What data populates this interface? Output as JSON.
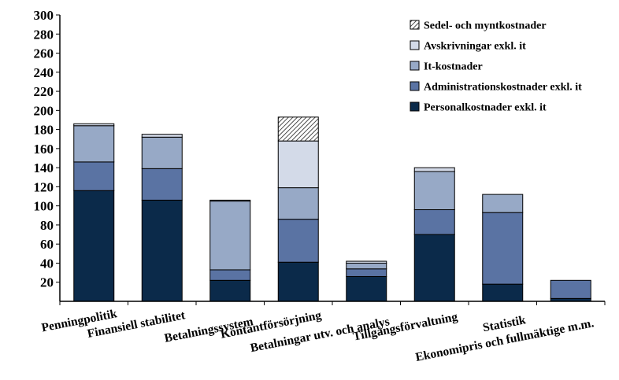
{
  "chart_data": {
    "type": "bar",
    "stacked": true,
    "title": "",
    "xlabel": "",
    "ylabel": "",
    "ylim": [
      0,
      300
    ],
    "yticks": [
      20,
      40,
      60,
      80,
      100,
      120,
      140,
      160,
      180,
      200,
      220,
      240,
      260,
      280,
      300
    ],
    "grid": false,
    "legend_position": "top-right",
    "categories": [
      "Penningpolitik",
      "Finansiell stabilitet",
      "Betalningssystem",
      "Kontantförsörjning",
      "Betalningar utv. och analys",
      "Tillgångsförvaltning",
      "Statistik",
      "Ekonomipris och fullmäktige m.m."
    ],
    "series": [
      {
        "name": "Personalkostnader exkl. it",
        "color": "#0b2a4a",
        "pattern": "solid",
        "values": [
          116,
          106,
          22,
          41,
          26,
          70,
          18,
          3
        ]
      },
      {
        "name": "Administrationskostnader exkl. it",
        "color": "#5a73a3",
        "pattern": "solid",
        "values": [
          30,
          33,
          11,
          45,
          8,
          26,
          75,
          19
        ]
      },
      {
        "name": "It-kostnader",
        "color": "#97a9c6",
        "pattern": "solid",
        "values": [
          38,
          33,
          72,
          33,
          6,
          40,
          19,
          0
        ]
      },
      {
        "name": "Avskrivningar exkl. it",
        "color": "#d3dae8",
        "pattern": "solid",
        "values": [
          2,
          3,
          1,
          49,
          2,
          4,
          0,
          0
        ]
      },
      {
        "name": "Sedel- och myntkostnader",
        "color": "#ffffff",
        "pattern": "hatch",
        "values": [
          0,
          0,
          0,
          25,
          0,
          0,
          0,
          0
        ]
      }
    ]
  }
}
